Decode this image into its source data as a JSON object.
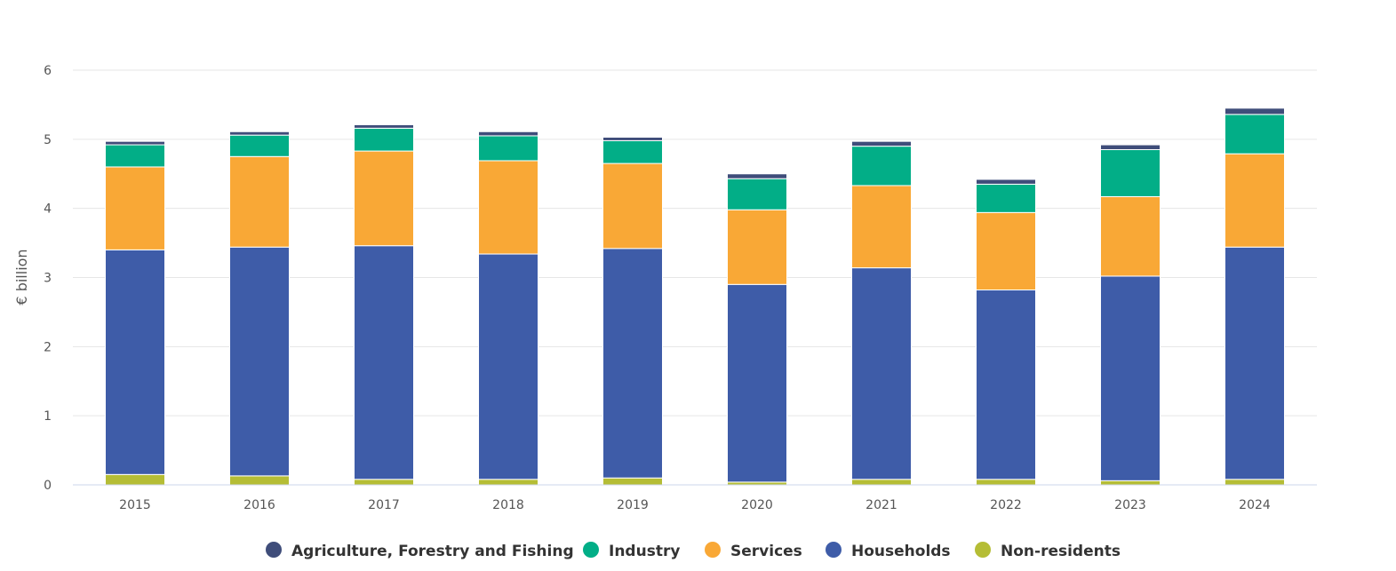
{
  "chart_data": {
    "type": "bar",
    "stacked": true,
    "ylabel": "€ billion",
    "xlabel": "",
    "ylim": [
      0,
      6
    ],
    "yticks": [
      "0",
      "1",
      "2",
      "3",
      "4",
      "5",
      "6"
    ],
    "grid": true,
    "legend_position": "bottom",
    "categories": [
      "2015",
      "2016",
      "2017",
      "2018",
      "2019",
      "2020",
      "2021",
      "2022",
      "2023",
      "2024"
    ],
    "series": [
      {
        "name": "Non-residents",
        "color": "#b5bd35",
        "values": [
          0.15,
          0.13,
          0.08,
          0.08,
          0.1,
          0.04,
          0.08,
          0.08,
          0.06,
          0.08
        ]
      },
      {
        "name": "Households",
        "color": "#3e5ca8",
        "values": [
          3.25,
          3.31,
          3.38,
          3.26,
          3.32,
          2.86,
          3.06,
          2.74,
          2.96,
          3.36
        ]
      },
      {
        "name": "Services",
        "color": "#f9a836",
        "values": [
          1.2,
          1.31,
          1.37,
          1.35,
          1.23,
          1.08,
          1.19,
          1.12,
          1.15,
          1.35
        ]
      },
      {
        "name": "Industry",
        "color": "#02ae87",
        "values": [
          0.32,
          0.31,
          0.33,
          0.36,
          0.33,
          0.45,
          0.57,
          0.41,
          0.68,
          0.57
        ]
      },
      {
        "name": "Agriculture, Forestry and Fishing",
        "color": "#3f4d7a",
        "values": [
          0.05,
          0.05,
          0.05,
          0.06,
          0.05,
          0.07,
          0.07,
          0.07,
          0.07,
          0.09
        ]
      }
    ],
    "legend_order": [
      "Agriculture, Forestry and Fishing",
      "Industry",
      "Services",
      "Households",
      "Non-residents"
    ]
  }
}
